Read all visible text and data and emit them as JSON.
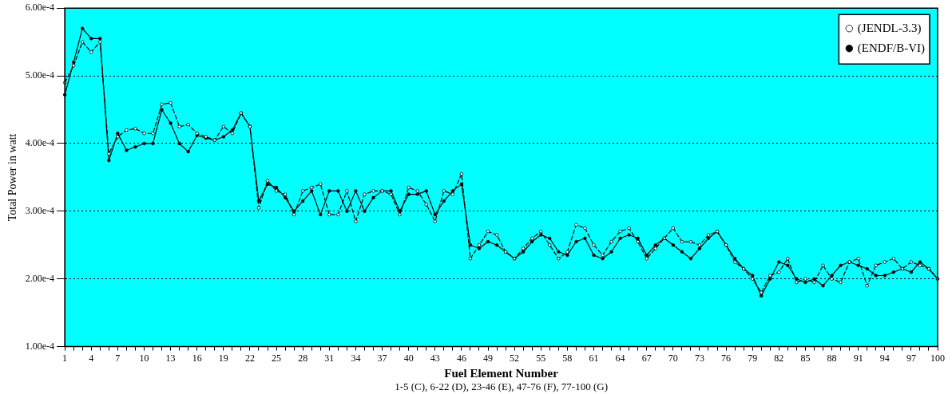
{
  "chart_data": {
    "type": "line",
    "xlabel": "Fuel Element Number",
    "ylabel": "Total Power in watt",
    "categories": [
      "1",
      null,
      null,
      "4",
      null,
      null,
      "7",
      null,
      null,
      "10",
      null,
      null,
      "13",
      null,
      null,
      "16",
      null,
      null,
      "19",
      null,
      null,
      "22",
      null,
      null,
      "25",
      null,
      null,
      "28",
      null,
      null,
      "31",
      null,
      null,
      "34",
      null,
      null,
      "37",
      null,
      null,
      "40",
      null,
      null,
      "43",
      null,
      null,
      "46",
      null,
      null,
      "49",
      null,
      null,
      "52",
      null,
      null,
      "55",
      null,
      null,
      "58",
      null,
      null,
      "61",
      null,
      null,
      "64",
      null,
      null,
      "67",
      null,
      null,
      "70",
      null,
      null,
      "73",
      null,
      null,
      "76",
      null,
      null,
      "79",
      null,
      null,
      "82",
      null,
      null,
      "85",
      null,
      null,
      "88",
      null,
      null,
      "91",
      null,
      null,
      "94",
      null,
      null,
      "97",
      null,
      null,
      "100"
    ],
    "series": [
      {
        "name": "(JENDL-3.3)",
        "color": "#000000",
        "line_style": "dashed",
        "values": [
          0.00049,
          0.000515,
          0.00055,
          0.000535,
          0.00055,
          0.000385,
          0.00041,
          0.00042,
          0.000422,
          0.000415,
          0.000415,
          0.000458,
          0.00046,
          0.000425,
          0.000428,
          0.000415,
          0.00041,
          0.000405,
          0.000425,
          0.000415,
          0.000445,
          0.000425,
          0.000305,
          0.000345,
          0.00033,
          0.000325,
          0.000295,
          0.00033,
          0.000335,
          0.00034,
          0.000295,
          0.000295,
          0.00033,
          0.000285,
          0.000325,
          0.00033,
          0.00033,
          0.000325,
          0.000295,
          0.000335,
          0.00033,
          0.00031,
          0.000285,
          0.00033,
          0.000325,
          0.000355,
          0.00023,
          0.00025,
          0.00027,
          0.000265,
          0.00024,
          0.00023,
          0.000245,
          0.00026,
          0.00027,
          0.00025,
          0.00023,
          0.00024,
          0.00028,
          0.000275,
          0.00025,
          0.000235,
          0.000255,
          0.00027,
          0.000275,
          0.000255,
          0.00023,
          0.000245,
          0.00026,
          0.000275,
          0.000255,
          0.000255,
          0.00025,
          0.000265,
          0.00027,
          0.00025,
          0.000225,
          0.000215,
          0.0002,
          0.00018,
          0.000205,
          0.00021,
          0.00023,
          0.000195,
          0.0002,
          0.000195,
          0.00022,
          0.0002,
          0.000195,
          0.000225,
          0.00023,
          0.00019,
          0.00022,
          0.000225,
          0.00023,
          0.000215,
          0.000225,
          0.00022,
          0.000215,
          0.0002
        ]
      },
      {
        "name": "(ENDF/B-VI)",
        "color": "#000000",
        "line_style": "solid",
        "values": [
          0.000472,
          0.00052,
          0.00057,
          0.000555,
          0.000555,
          0.000375,
          0.000415,
          0.00039,
          0.000395,
          0.0004,
          0.0004,
          0.00045,
          0.00043,
          0.0004,
          0.000388,
          0.000412,
          0.000408,
          0.000405,
          0.00041,
          0.00042,
          0.000445,
          0.000425,
          0.000315,
          0.00034,
          0.000335,
          0.00032,
          0.0003,
          0.000315,
          0.00033,
          0.000295,
          0.00033,
          0.00033,
          0.0003,
          0.00033,
          0.0003,
          0.00032,
          0.00033,
          0.00033,
          0.0003,
          0.000325,
          0.000325,
          0.00033,
          0.000295,
          0.000315,
          0.00033,
          0.00034,
          0.00025,
          0.000245,
          0.000255,
          0.00025,
          0.00024,
          0.00023,
          0.00024,
          0.000255,
          0.000265,
          0.00026,
          0.00024,
          0.000235,
          0.000255,
          0.00026,
          0.000235,
          0.00023,
          0.00024,
          0.00026,
          0.000265,
          0.00026,
          0.000235,
          0.00025,
          0.00026,
          0.00025,
          0.00024,
          0.00023,
          0.000245,
          0.00026,
          0.00027,
          0.00025,
          0.00023,
          0.000215,
          0.000205,
          0.000175,
          0.0002,
          0.000225,
          0.00022,
          0.0002,
          0.000195,
          0.0002,
          0.00019,
          0.000205,
          0.00022,
          0.000225,
          0.00022,
          0.000215,
          0.000205,
          0.000205,
          0.00021,
          0.000215,
          0.00021,
          0.000225,
          0.000215,
          0.0002
        ]
      }
    ],
    "ylim": [
      0.0001,
      0.0006
    ],
    "yticks": [
      {
        "value": 0.0001,
        "label": "1.00e-4"
      },
      {
        "value": 0.0002,
        "label": "2.00e-4"
      },
      {
        "value": 0.0003,
        "label": "3.00e-4"
      },
      {
        "value": 0.0004,
        "label": "4.00e-4"
      },
      {
        "value": 0.0005,
        "label": "5.00e-4"
      },
      {
        "value": 0.0006,
        "label": "6.00e-4"
      }
    ],
    "grid": "y",
    "legend": "top right",
    "marker": "circle",
    "annotations": [
      "1-5 (C), 6-22 (D), 23-46 (E), 47-76 (F), 77-100 (G)"
    ]
  }
}
